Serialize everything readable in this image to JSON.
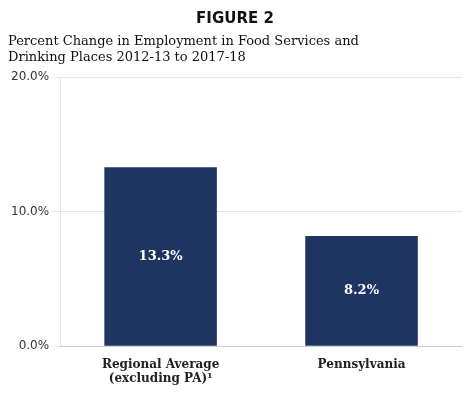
{
  "chart_data": {
    "type": "bar",
    "title": "FIGURE 2",
    "subtitle": [
      "Percent Change in Employment in Food Services and",
      "Drinking Places 2012-13 to 2017-18"
    ],
    "categories": [
      "Regional Average\n(excluding PA)¹",
      "Pennsylvania"
    ],
    "values": [
      13.3,
      8.2
    ],
    "value_labels": [
      "13.3%",
      "8.2%"
    ],
    "data_labels": true,
    "color": "#1e3461",
    "ylim": [
      0,
      20
    ],
    "yticks": [
      {
        "value": 0,
        "label": "0.0%"
      },
      {
        "value": 10,
        "label": "10.0%"
      },
      {
        "value": 20,
        "label": "20.0%"
      }
    ],
    "grid": true
  }
}
